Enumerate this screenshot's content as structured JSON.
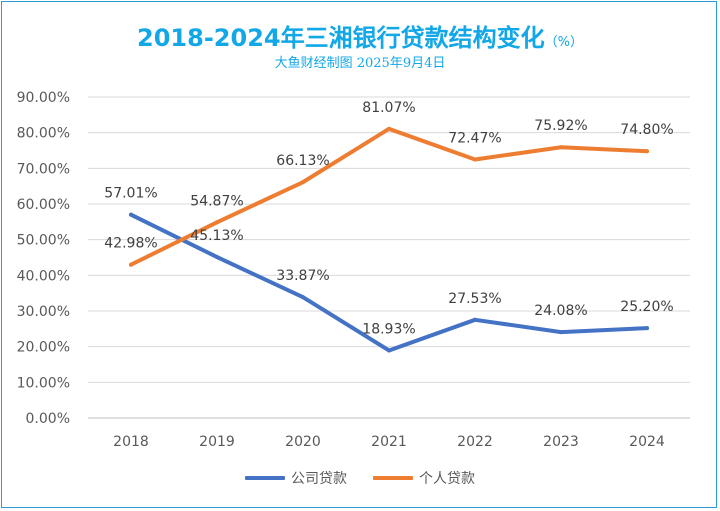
{
  "chart_data": {
    "type": "line",
    "title": "2018-2024年三湘银行贷款结构变化",
    "title_unit": "（%）",
    "subtitle": "大鱼财经制图 2025年9月4日",
    "categories": [
      "2018",
      "2019",
      "2020",
      "2021",
      "2022",
      "2023",
      "2024"
    ],
    "ylim": [
      0,
      90
    ],
    "yticks": [
      "0.00%",
      "10.00%",
      "20.00%",
      "30.00%",
      "40.00%",
      "50.00%",
      "60.00%",
      "70.00%",
      "80.00%",
      "90.00%"
    ],
    "grid": true,
    "legend_position": "bottom",
    "series": [
      {
        "name": "公司贷款",
        "color": "#4472c4",
        "values": [
          57.01,
          45.13,
          33.87,
          18.93,
          27.53,
          24.08,
          25.2
        ],
        "labels": [
          "57.01%",
          "45.13%",
          "33.87%",
          "18.93%",
          "27.53%",
          "24.08%",
          "25.20%"
        ]
      },
      {
        "name": "个人贷款",
        "color": "#ed7d31",
        "values": [
          42.98,
          54.87,
          66.13,
          81.07,
          72.47,
          75.92,
          74.8
        ],
        "labels": [
          "42.98%",
          "54.87%",
          "66.13%",
          "81.07%",
          "72.47%",
          "75.92%",
          "74.80%"
        ]
      }
    ]
  }
}
